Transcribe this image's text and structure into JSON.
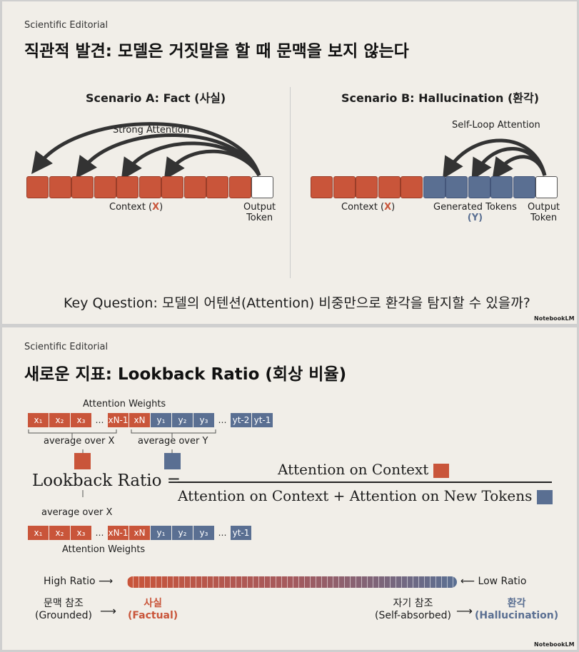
{
  "slide1": {
    "kicker": "Scientific Editorial",
    "title": "직관적 발견: 모델은 거짓말을 할 때 문맥을 보지 않는다",
    "scenario_a": {
      "title": "Scenario A: Fact (사실)",
      "attention": "Strong Attention",
      "context_prefix": "Context (",
      "context_x": "X",
      "context_suffix": ")",
      "output": "Output",
      "output2": "Token"
    },
    "scenario_b": {
      "title": "Scenario B: Hallucination (환각)",
      "attention": "Self-Loop Attention",
      "context_prefix": "Context (",
      "context_x": "X",
      "context_suffix": ")",
      "generated": "Generated Tokens",
      "generated_y": "(Y)",
      "output": "Output",
      "output2": "Token"
    },
    "question": "Key Question: 모델의 어텐션(Attention) 비중만으로 환각을 탐지할 수 있을까?",
    "brand": "NotebookLM"
  },
  "slide2": {
    "kicker": "Scientific Editorial",
    "title": "새로운 지표: Lookback Ratio (회상 비율)",
    "top_weights_label": "Attention Weights",
    "bottom_weights_label": "Attention Weights",
    "top_x_tokens": [
      "x₁",
      "x₂",
      "x₃",
      "…",
      "xN-1",
      "xN"
    ],
    "top_y_tokens": [
      "y₁",
      "y₂",
      "y₃",
      "…",
      "yt-2",
      "yt-1"
    ],
    "bottom_x_tokens": [
      "x₁",
      "x₂",
      "x₃",
      "…",
      "xN-1",
      "xN"
    ],
    "bottom_y_tokens": [
      "y₁",
      "y₂",
      "y₃",
      "…",
      "yt-1"
    ],
    "avg_x": "average over X",
    "avg_y": "average over Y",
    "avg_x_bottom": "average over X",
    "lhs": "Lookback Ratio =",
    "numerator": "Attention on Context",
    "denominator": "Attention on Context + Attention on New Tokens",
    "high_ratio": "High Ratio",
    "low_ratio": "Low Ratio",
    "grounded_ko": "문맥 참조",
    "grounded_en": "(Grounded)",
    "factual_ko": "사실",
    "factual_en": "(Factual)",
    "self_ko": "자기 참조",
    "self_en": "(Self-absorbed)",
    "halluc_ko": "환각",
    "halluc_en": "(Hallucination)",
    "brand": "NotebookLM"
  },
  "colors": {
    "context": "#c9553a",
    "generated": "#5a6f92",
    "background": "#f1eee8"
  }
}
